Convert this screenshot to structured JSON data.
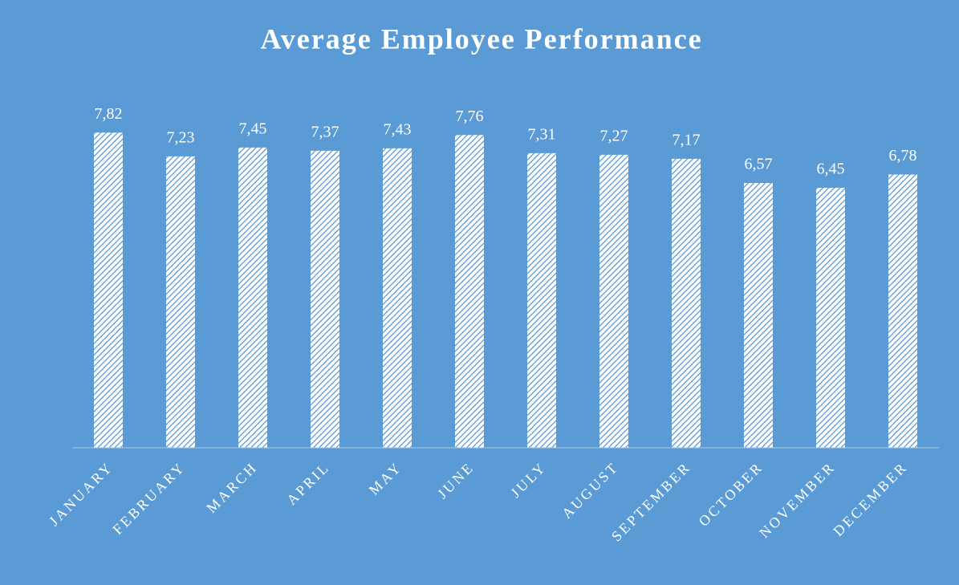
{
  "chart_data": {
    "type": "bar",
    "title": "Average Employee Performance",
    "categories": [
      "JANUARY",
      "FEBRUARY",
      "MARCH",
      "APRIL",
      "MAY",
      "JUNE",
      "JULY",
      "AUGUST",
      "SEPTEMBER",
      "OCTOBER",
      "NOVEMBER",
      "DECEMBER"
    ],
    "values": [
      7.82,
      7.23,
      7.45,
      7.37,
      7.43,
      7.76,
      7.31,
      7.27,
      7.17,
      6.57,
      6.45,
      6.78
    ],
    "value_labels": [
      "7,82",
      "7,23",
      "7,45",
      "7,37",
      "7,43",
      "7,76",
      "7,31",
      "7,27",
      "7,17",
      "6,57",
      "6,45",
      "6,78"
    ],
    "color": "#5b9bd5",
    "ylim": [
      0,
      9
    ]
  }
}
